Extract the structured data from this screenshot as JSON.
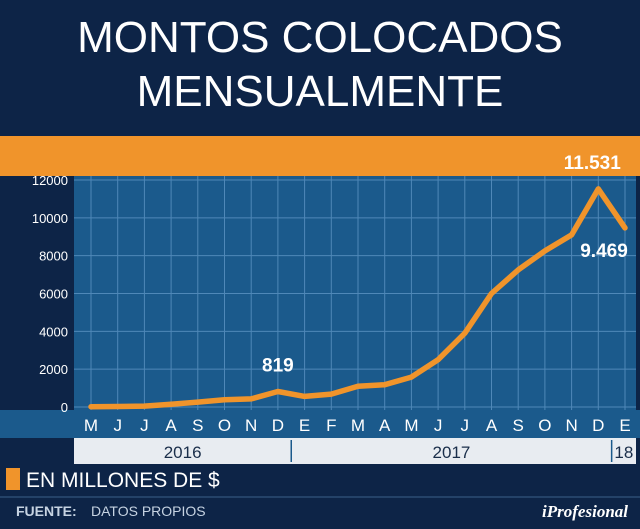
{
  "header": {
    "title_line1": "MONTOS COLOCADOS",
    "title_line2": "MENSUALMENTE"
  },
  "legend": {
    "label": "EN MILLONES DE $",
    "swatch_color": "#f0942b"
  },
  "footer": {
    "source_label": "FUENTE:",
    "source_value": "DATOS PROPIOS",
    "brand": "iProfesional"
  },
  "colors": {
    "background": "#0d2447",
    "plot_bg": "#1b5a8c",
    "accent": "#f0942b",
    "grid": "#4f88b8"
  },
  "chart_data": {
    "type": "line",
    "x": [
      "M",
      "J",
      "J",
      "A",
      "S",
      "O",
      "N",
      "D",
      "E",
      "F",
      "M",
      "A",
      "M",
      "J",
      "J",
      "A",
      "S",
      "O",
      "N",
      "D",
      "E"
    ],
    "years": [
      {
        "label": "2016",
        "from": 0,
        "to": 7
      },
      {
        "label": "2017",
        "from": 8,
        "to": 19
      },
      {
        "label": "18",
        "from": 20,
        "to": 20
      }
    ],
    "series": [
      {
        "values": [
          15,
          25,
          50,
          150,
          260,
          380,
          430,
          819,
          560,
          680,
          1100,
          1180,
          1580,
          2500,
          3900,
          6000,
          7250,
          8250,
          9100,
          11531,
          9469
        ]
      }
    ],
    "ylim": [
      0,
      12000
    ],
    "yticks": [
      0,
      2000,
      4000,
      6000,
      8000,
      10000,
      12000
    ],
    "grid": true,
    "annotations": [
      {
        "index": 7,
        "label": "819"
      },
      {
        "index": 19,
        "label": "11.531"
      },
      {
        "index": 20,
        "label": "9.469"
      }
    ]
  }
}
